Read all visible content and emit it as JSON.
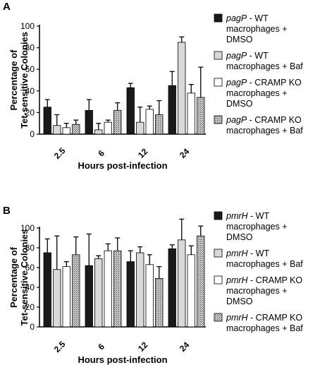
{
  "panels": [
    {
      "letter": "A",
      "chart_data": {
        "type": "bar",
        "xlabel": "Hours post-infection",
        "ylabel": "Percentage of Tet-sensitive Colonies",
        "ylabel_lines": [
          "Percentage of",
          "Tet-sensitive Colonies"
        ],
        "ylim": [
          0,
          100
        ],
        "yticks": [
          "0",
          "20",
          "40",
          "60",
          "80",
          "100"
        ],
        "categories": [
          "2.5",
          "6",
          "12",
          "24"
        ],
        "legend_position": "right",
        "series": [
          {
            "name": "pagP - WT macrophages + DMSO",
            "gene": "pagP",
            "label_lines": [
              " - WT",
              "macrophages +",
              "DMSO"
            ],
            "style": "black",
            "values": [
              25,
              22,
              43,
              45
            ],
            "errors": [
              7,
              10,
              4,
              13
            ]
          },
          {
            "name": "pagP - WT macrophages + Baf",
            "gene": "pagP",
            "label_lines": [
              " - WT",
              "macrophages + Baf"
            ],
            "style": "lightgray",
            "values": [
              8,
              4,
              11,
              85
            ],
            "errors": [
              10,
              6,
              14,
              5
            ]
          },
          {
            "name": "pagP - CRAMP KO macrophages + DMSO",
            "gene": "pagP",
            "label_lines": [
              " - CRAMP KO",
              "macrophages +",
              "DMSO"
            ],
            "style": "white",
            "values": [
              6,
              11,
              23,
              38
            ],
            "errors": [
              4,
              2,
              3,
              8
            ]
          },
          {
            "name": "pagP - CRAMP KO macrophages + Baf",
            "gene": "pagP",
            "label_lines": [
              " - CRAMP KO",
              "macrophages + Baf"
            ],
            "style": "hatched",
            "values": [
              9,
              22,
              18,
              34
            ],
            "errors": [
              4,
              7,
              13,
              28
            ]
          }
        ]
      }
    },
    {
      "letter": "B",
      "chart_data": {
        "type": "bar",
        "xlabel": "Hours post-infection",
        "ylabel": "Percentage of Tet-sensitive Colonies",
        "ylabel_lines": [
          "Percentage of",
          "Tet-sensitive Colonies"
        ],
        "ylim": [
          0,
          100
        ],
        "yticks": [
          "0",
          "20",
          "40",
          "60",
          "80",
          "100"
        ],
        "categories": [
          "2.5",
          "6",
          "12",
          "24"
        ],
        "legend_position": "right",
        "series": [
          {
            "name": "pmrH - WT macrophages + DMSO",
            "gene": "pmrH",
            "label_lines": [
              " - WT",
              "macrophages +",
              "DMSO"
            ],
            "style": "black",
            "values": [
              75,
              62,
              66,
              79
            ],
            "errors": [
              14,
              32,
              11,
              4
            ]
          },
          {
            "name": "pmrH - WT macrophages + Baf",
            "gene": "pmrH",
            "label_lines": [
              " - WT",
              "macrophages + Baf"
            ],
            "style": "lightgray",
            "values": [
              58,
              69,
              75,
              88
            ],
            "errors": [
              34,
              3,
              6,
              21
            ]
          },
          {
            "name": "pmrH - CRAMP KO macrophages + DMSO",
            "gene": "pmrH",
            "label_lines": [
              " - CRAMP KO",
              "macrophages +",
              "DMSO"
            ],
            "style": "white",
            "values": [
              61,
              77,
              63,
              73
            ],
            "errors": [
              5,
              7,
              10,
              9
            ]
          },
          {
            "name": "pmrH - CRAMP KO macrophages + Baf",
            "gene": "pmrH",
            "label_lines": [
              " - CRAMP KO",
              "macrophages + Baf"
            ],
            "style": "hatched",
            "values": [
              73,
              77,
              49,
              92
            ],
            "errors": [
              18,
              13,
              12,
              10
            ]
          }
        ]
      }
    }
  ]
}
